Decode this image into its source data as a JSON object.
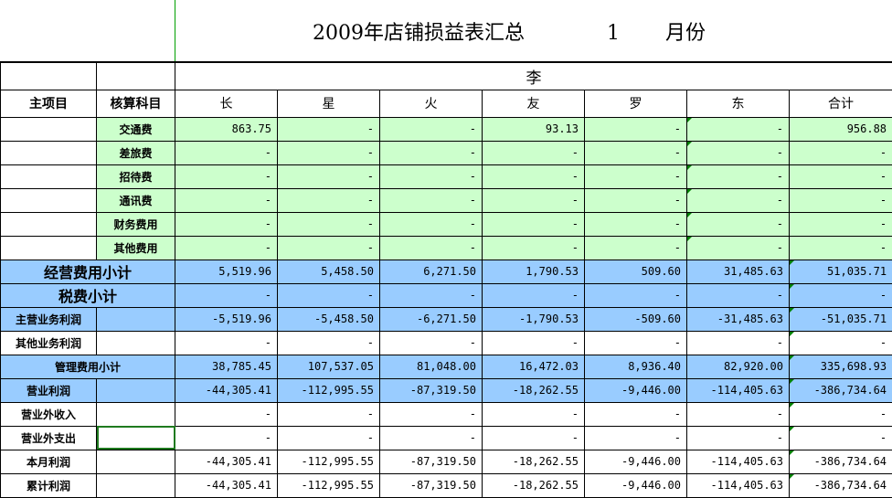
{
  "title": {
    "text": "2009年店铺损益表汇总",
    "month_value": "1",
    "month_label": "月份"
  },
  "group_header": "李",
  "headers": {
    "main_item": "主项目",
    "account": "核算科目",
    "columns": [
      "长",
      "星",
      "火",
      "友",
      "罗",
      "东",
      "合计"
    ]
  },
  "expense_rows": [
    {
      "label": "交通费",
      "values": [
        "863.75",
        "-",
        "-",
        "93.13",
        "-",
        "-",
        "956.88"
      ]
    },
    {
      "label": "差旅费",
      "values": [
        "-",
        "-",
        "-",
        "-",
        "-",
        "-",
        "-"
      ]
    },
    {
      "label": "招待费",
      "values": [
        "-",
        "-",
        "-",
        "-",
        "-",
        "-",
        "-"
      ]
    },
    {
      "label": "通讯费",
      "values": [
        "-",
        "-",
        "-",
        "-",
        "-",
        "-",
        "-"
      ]
    },
    {
      "label": "财务费用",
      "values": [
        "-",
        "-",
        "-",
        "-",
        "-",
        "-",
        "-"
      ]
    },
    {
      "label": "其他费用",
      "values": [
        "-",
        "-",
        "-",
        "-",
        "-",
        "-",
        "-"
      ]
    }
  ],
  "summary_rows": [
    {
      "label": "经营费用小计",
      "style": "blue-big",
      "values": [
        "5,519.96",
        "5,458.50",
        "6,271.50",
        "1,790.53",
        "509.60",
        "31,485.63",
        "51,035.71"
      ]
    },
    {
      "label": "税费小计",
      "style": "blue-big",
      "values": [
        "-",
        "-",
        "-",
        "-",
        "-",
        "-",
        "-"
      ]
    },
    {
      "label": "主营业务利润",
      "style": "blue",
      "values": [
        "-5,519.96",
        "-5,458.50",
        "-6,271.50",
        "-1,790.53",
        "-509.60",
        "-31,485.63",
        "-51,035.71"
      ]
    },
    {
      "label": "其他业务利润",
      "style": "white",
      "values": [
        "-",
        "-",
        "-",
        "-",
        "-",
        "-",
        "-"
      ]
    },
    {
      "label": "管理费用小计",
      "style": "blue-wide",
      "values": [
        "38,785.45",
        "107,537.05",
        "81,048.00",
        "16,472.03",
        "8,936.40",
        "82,920.00",
        "335,698.93"
      ]
    },
    {
      "label": "营业利润",
      "style": "blue",
      "values": [
        "-44,305.41",
        "-112,995.55",
        "-87,319.50",
        "-18,262.55",
        "-9,446.00",
        "-114,405.63",
        "-386,734.64"
      ]
    },
    {
      "label": "营业外收入",
      "style": "white",
      "values": [
        "-",
        "-",
        "-",
        "-",
        "-",
        "-",
        "-"
      ]
    },
    {
      "label": "营业外支出",
      "style": "white-sel",
      "values": [
        "-",
        "-",
        "-",
        "-",
        "-",
        "-",
        "-"
      ]
    },
    {
      "label": "本月利润",
      "style": "white",
      "values": [
        "-44,305.41",
        "-112,995.55",
        "-87,319.50",
        "-18,262.55",
        "-9,446.00",
        "-114,405.63",
        "-386,734.64"
      ]
    },
    {
      "label": "累计利润",
      "style": "white",
      "values": [
        "-44,305.41",
        "-112,995.55",
        "-87,319.50",
        "-18,262.55",
        "-9,446.00",
        "-114,405.63",
        "-386,734.64"
      ]
    }
  ],
  "colors": {
    "green_fill": "#ccffcc",
    "blue_fill": "#99ccff"
  }
}
